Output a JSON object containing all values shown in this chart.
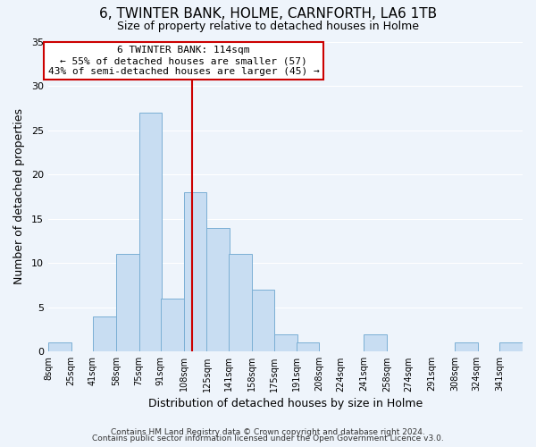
{
  "title": "6, TWINTER BANK, HOLME, CARNFORTH, LA6 1TB",
  "subtitle": "Size of property relative to detached houses in Holme",
  "xlabel": "Distribution of detached houses by size in Holme",
  "ylabel": "Number of detached properties",
  "bar_color": "#c8ddf2",
  "bar_edge_color": "#7bafd4",
  "bin_labels": [
    "8sqm",
    "25sqm",
    "41sqm",
    "58sqm",
    "75sqm",
    "91sqm",
    "108sqm",
    "125sqm",
    "141sqm",
    "158sqm",
    "175sqm",
    "191sqm",
    "208sqm",
    "224sqm",
    "241sqm",
    "258sqm",
    "274sqm",
    "291sqm",
    "308sqm",
    "324sqm",
    "341sqm"
  ],
  "bin_edges": [
    8,
    25,
    41,
    58,
    75,
    91,
    108,
    125,
    141,
    158,
    175,
    191,
    208,
    224,
    241,
    258,
    274,
    291,
    308,
    324,
    341
  ],
  "counts": [
    1,
    0,
    4,
    11,
    27,
    6,
    18,
    14,
    11,
    7,
    2,
    1,
    0,
    0,
    2,
    0,
    0,
    0,
    1,
    0,
    1
  ],
  "vline_x": 114,
  "vline_color": "#cc0000",
  "annotation_title": "6 TWINTER BANK: 114sqm",
  "annotation_line1": "← 55% of detached houses are smaller (57)",
  "annotation_line2": "43% of semi-detached houses are larger (45) →",
  "annotation_box_color": "#ffffff",
  "annotation_box_edge": "#cc0000",
  "ylim": [
    0,
    35
  ],
  "yticks": [
    0,
    5,
    10,
    15,
    20,
    25,
    30,
    35
  ],
  "footer1": "Contains HM Land Registry data © Crown copyright and database right 2024.",
  "footer2": "Contains public sector information licensed under the Open Government Licence v3.0.",
  "background_color": "#eef4fb",
  "plot_bg_color": "#eef4fb"
}
